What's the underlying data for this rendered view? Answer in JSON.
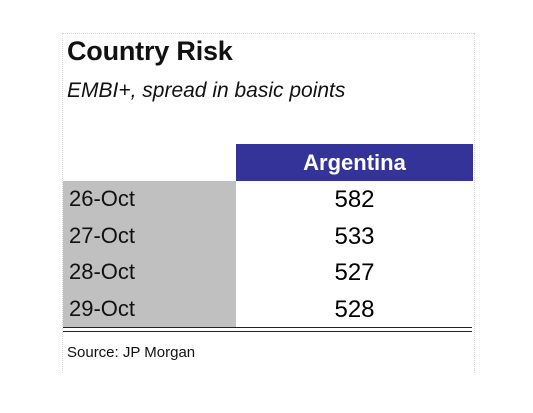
{
  "chart_data": {
    "type": "table",
    "title": "Country Risk",
    "subtitle": "EMBI+, spread in basic points",
    "columns": [
      "",
      "Argentina"
    ],
    "categories": [
      "26-Oct",
      "27-Oct",
      "28-Oct",
      "29-Oct"
    ],
    "series": [
      {
        "name": "Argentina",
        "values": [
          582,
          533,
          527,
          528
        ]
      }
    ],
    "source": "Source: JP Morgan",
    "colors": {
      "header_background": "#33339a",
      "header_text": "#ffffff",
      "date_column_background": "#c0c0c0"
    }
  }
}
